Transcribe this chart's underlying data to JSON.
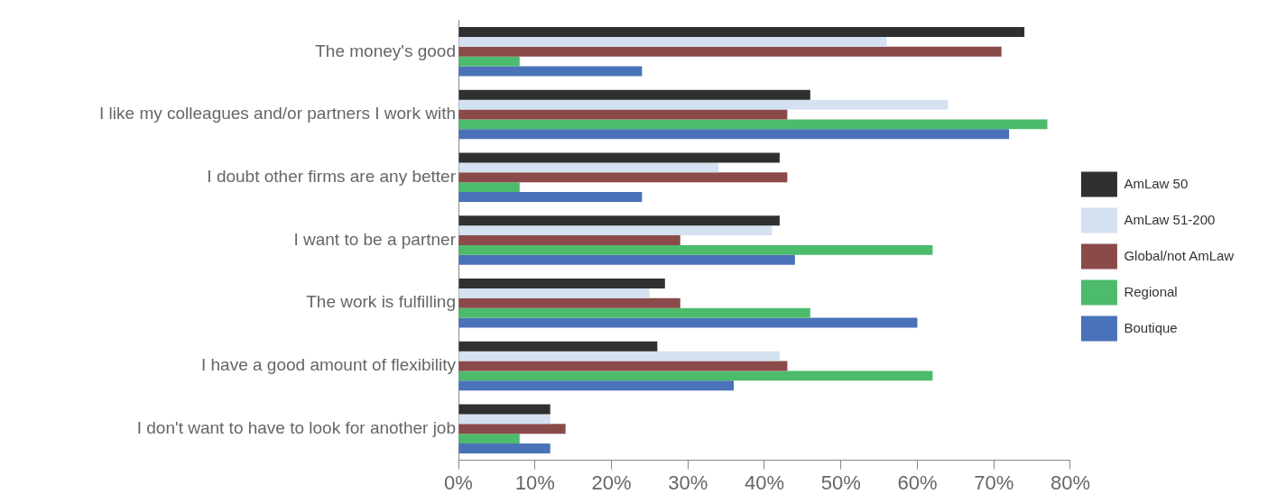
{
  "chart_data": {
    "type": "bar",
    "orientation": "horizontal",
    "categories": [
      "The money's good",
      "I like my colleagues and/or partners I work with",
      "I doubt other firms are any better",
      "I want to be a partner",
      "The work is fulfilling",
      "I have a good amount of flexibility",
      "I don't want to have to look for another job"
    ],
    "series": [
      {
        "name": "AmLaw 50",
        "color": "#303030",
        "values": [
          74,
          46,
          42,
          42,
          27,
          26,
          12
        ]
      },
      {
        "name": "AmLaw 51-200",
        "color": "#d3e1f0",
        "values": [
          56,
          64,
          34,
          41,
          25,
          42,
          12
        ]
      },
      {
        "name": "Global/not AmLaw",
        "color": "#8b4a4a",
        "values": [
          71,
          43,
          43,
          29,
          29,
          43,
          14
        ]
      },
      {
        "name": "Regional",
        "color": "#4cbb6c",
        "values": [
          8,
          77,
          8,
          62,
          46,
          62,
          8
        ]
      },
      {
        "name": "Boutique",
        "color": "#4a72b8",
        "values": [
          24,
          72,
          24,
          44,
          60,
          36,
          12
        ]
      }
    ],
    "xlim": [
      0,
      80
    ],
    "xticks": [
      {
        "value": 0,
        "label": "0%"
      },
      {
        "value": 10,
        "label": "10%"
      },
      {
        "value": 20,
        "label": "20%"
      },
      {
        "value": 30,
        "label": "30%"
      },
      {
        "value": 40,
        "label": "40%"
      },
      {
        "value": 50,
        "label": "50%"
      },
      {
        "value": 60,
        "label": "60%"
      },
      {
        "value": 70,
        "label": "70%"
      },
      {
        "value": 80,
        "label": "80%"
      }
    ],
    "grid": false,
    "legend": "right"
  }
}
